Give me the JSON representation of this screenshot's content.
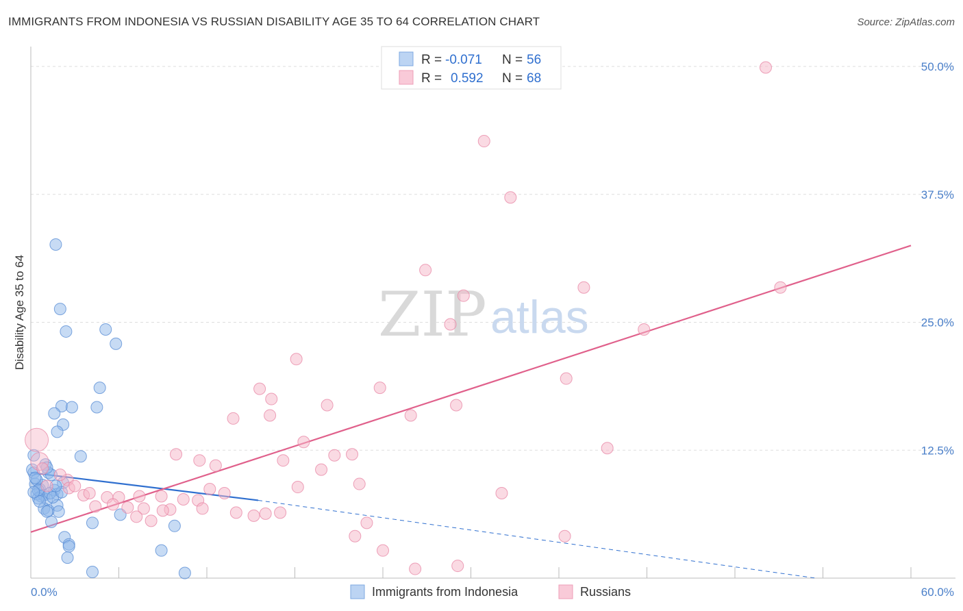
{
  "title": "IMMIGRANTS FROM INDONESIA VS RUSSIAN DISABILITY AGE 35 TO 64 CORRELATION CHART",
  "source": "Source: ZipAtlas.com",
  "watermark": {
    "zip": "ZIP",
    "atlas": "atlas"
  },
  "legend": {
    "rows": [
      {
        "r_label": "R =",
        "r_value": "-0.071",
        "n_label": "N =",
        "n_value": "56",
        "color": "#a9c8f0"
      },
      {
        "r_label": "R =",
        "r_value": "0.592",
        "n_label": "N =",
        "n_value": "68",
        "color": "#f7b8cb"
      }
    ]
  },
  "bottom_legend": [
    {
      "label": "Immigrants from Indonesia",
      "color": "#a9c8f0"
    },
    {
      "label": "Russians",
      "color": "#f7b8cb"
    }
  ],
  "chart_data": {
    "type": "scatter",
    "title": "IMMIGRANTS FROM INDONESIA VS RUSSIAN DISABILITY AGE 35 TO 64 CORRELATION CHART",
    "xlabel": "",
    "ylabel": "Disability Age 35 to 64",
    "xlim": [
      0,
      60
    ],
    "ylim": [
      0,
      50
    ],
    "x_tick_labels": [
      "0.0%",
      "60.0%"
    ],
    "y_ticks": [
      12.5,
      25,
      37.5,
      50
    ],
    "y_tick_labels": [
      "12.5%",
      "25.0%",
      "37.5%",
      "50.0%"
    ],
    "grid": true,
    "series": [
      {
        "name": "Immigrants from Indonesia",
        "color": "#8fb8ea",
        "stroke": "#5b8fd6",
        "trend": {
          "x0": 0,
          "y0": 10.3,
          "x1": 15.5,
          "y1": 7.6,
          "dash_to_x": 53.5,
          "dash_to_y": 0
        },
        "points": [
          [
            1.7,
            32.6
          ],
          [
            2.0,
            26.3
          ],
          [
            2.4,
            24.1
          ],
          [
            5.1,
            24.3
          ],
          [
            5.8,
            22.9
          ],
          [
            4.7,
            18.6
          ],
          [
            2.1,
            16.8
          ],
          [
            2.8,
            16.7
          ],
          [
            4.5,
            16.7
          ],
          [
            1.6,
            16.1
          ],
          [
            2.2,
            15.0
          ],
          [
            1.8,
            14.3
          ],
          [
            0.2,
            12.0
          ],
          [
            3.4,
            11.9
          ],
          [
            1.0,
            11.1
          ],
          [
            0.2,
            10.3
          ],
          [
            1.2,
            10.3
          ],
          [
            1.4,
            10.1
          ],
          [
            2.2,
            9.3
          ],
          [
            0.8,
            9.1
          ],
          [
            0.3,
            9.2
          ],
          [
            0.6,
            8.7
          ],
          [
            1.6,
            8.6
          ],
          [
            1.8,
            8.2
          ],
          [
            0.4,
            8.2
          ],
          [
            0.7,
            8.0
          ],
          [
            0.9,
            8.1
          ],
          [
            1.1,
            7.7
          ],
          [
            0.5,
            7.8
          ],
          [
            1.8,
            7.1
          ],
          [
            0.9,
            6.8
          ],
          [
            1.2,
            6.6
          ],
          [
            1.1,
            6.5
          ],
          [
            1.9,
            6.5
          ],
          [
            6.1,
            6.2
          ],
          [
            1.4,
            5.5
          ],
          [
            4.2,
            5.4
          ],
          [
            9.8,
            5.1
          ],
          [
            2.3,
            4.0
          ],
          [
            2.6,
            3.3
          ],
          [
            2.6,
            3.1
          ],
          [
            2.5,
            2.0
          ],
          [
            8.9,
            2.7
          ],
          [
            4.2,
            0.6
          ],
          [
            10.5,
            0.5
          ],
          [
            0.1,
            10.6
          ],
          [
            0.4,
            9.6
          ],
          [
            1.3,
            8.3
          ],
          [
            0.5,
            8.6
          ],
          [
            1.5,
            7.9
          ],
          [
            2.1,
            8.4
          ],
          [
            0.3,
            9.8
          ],
          [
            1.1,
            10.8
          ],
          [
            0.6,
            7.5
          ],
          [
            1.7,
            9.0
          ],
          [
            0.2,
            8.4
          ]
        ]
      },
      {
        "name": "Russians",
        "color": "#f6b5c8",
        "stroke": "#e98aa8",
        "trend": {
          "x0": 0,
          "y0": 4.5,
          "x1": 60,
          "y1": 32.5
        },
        "points": [
          [
            50.1,
            49.9
          ],
          [
            30.9,
            42.7
          ],
          [
            32.7,
            37.2
          ],
          [
            26.9,
            30.1
          ],
          [
            37.7,
            28.4
          ],
          [
            29.5,
            27.6
          ],
          [
            51.1,
            28.4
          ],
          [
            28.6,
            24.8
          ],
          [
            41.8,
            24.3
          ],
          [
            18.1,
            21.4
          ],
          [
            23.8,
            18.6
          ],
          [
            36.5,
            19.5
          ],
          [
            15.6,
            18.5
          ],
          [
            16.4,
            17.5
          ],
          [
            20.2,
            16.9
          ],
          [
            29.0,
            16.9
          ],
          [
            16.3,
            15.9
          ],
          [
            25.9,
            15.9
          ],
          [
            13.8,
            15.6
          ],
          [
            18.6,
            13.3
          ],
          [
            39.3,
            12.7
          ],
          [
            0.4,
            13.5
          ],
          [
            9.9,
            12.1
          ],
          [
            20.7,
            12.0
          ],
          [
            21.9,
            12.1
          ],
          [
            11.5,
            11.5
          ],
          [
            17.2,
            11.5
          ],
          [
            12.6,
            11.0
          ],
          [
            0.6,
            11.4
          ],
          [
            19.8,
            10.6
          ],
          [
            2.5,
            9.6
          ],
          [
            22.4,
            9.2
          ],
          [
            18.2,
            8.9
          ],
          [
            12.2,
            8.7
          ],
          [
            2.6,
            8.8
          ],
          [
            32.1,
            8.3
          ],
          [
            13.2,
            8.3
          ],
          [
            3.6,
            8.1
          ],
          [
            4.0,
            8.3
          ],
          [
            7.4,
            8.0
          ],
          [
            8.9,
            8.0
          ],
          [
            5.2,
            7.9
          ],
          [
            6.0,
            7.9
          ],
          [
            10.4,
            7.7
          ],
          [
            11.4,
            7.6
          ],
          [
            4.4,
            7.0
          ],
          [
            6.6,
            6.9
          ],
          [
            7.7,
            6.8
          ],
          [
            9.5,
            6.7
          ],
          [
            9.0,
            6.6
          ],
          [
            11.7,
            6.8
          ],
          [
            14.0,
            6.4
          ],
          [
            16.0,
            6.3
          ],
          [
            15.2,
            6.1
          ],
          [
            17.0,
            6.4
          ],
          [
            7.2,
            6.0
          ],
          [
            8.2,
            5.6
          ],
          [
            22.9,
            5.4
          ],
          [
            22.1,
            4.1
          ],
          [
            36.4,
            4.1
          ],
          [
            24.0,
            2.7
          ],
          [
            26.2,
            0.9
          ],
          [
            29.1,
            1.2
          ],
          [
            1.1,
            9.0
          ],
          [
            3.0,
            9.0
          ],
          [
            0.8,
            10.7
          ],
          [
            2.0,
            10.1
          ],
          [
            5.6,
            7.2
          ]
        ],
        "large_points": [
          [
            0.4,
            13.5
          ],
          [
            0.6,
            11.4
          ]
        ]
      }
    ]
  }
}
